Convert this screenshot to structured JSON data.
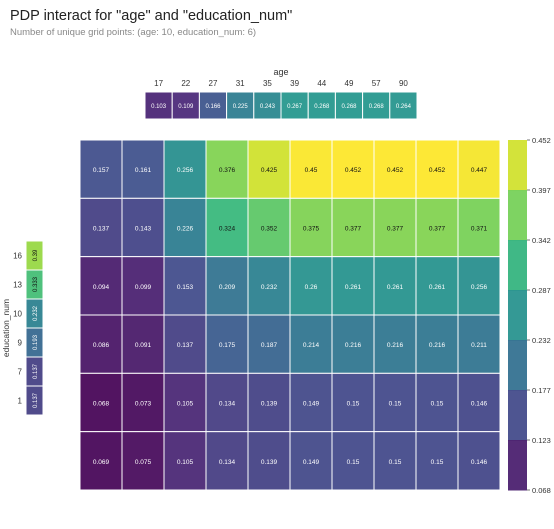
{
  "header": {
    "title": "PDP interact for \"age\" and \"education_num\"",
    "subtitle": "Number of unique grid points: (age: 10, education_num: 6)"
  },
  "colors": {
    "scale": [
      "#440154",
      "#482878",
      "#3e4989",
      "#31688e",
      "#26828e",
      "#1f9e89",
      "#35b779",
      "#6ece58",
      "#b5de2b",
      "#fde725"
    ],
    "cell_border": "#ffffff"
  },
  "chart_data": {
    "type": "heatmap",
    "colormap": "viridis",
    "x_feature": "age",
    "y_feature": "education_num",
    "x_ticks": [
      "17",
      "22",
      "27",
      "31",
      "35",
      "39",
      "44",
      "49",
      "57",
      "90"
    ],
    "y_ticks": [
      "16",
      "13",
      "10",
      "9",
      "7",
      "1"
    ],
    "x_marginal": [
      0.103,
      0.109,
      0.166,
      0.225,
      0.243,
      0.267,
      0.268,
      0.268,
      0.268,
      0.264
    ],
    "y_marginal": [
      0.39,
      0.333,
      0.232,
      0.193,
      0.137,
      0.137
    ],
    "matrix": [
      [
        0.157,
        0.161,
        0.256,
        0.376,
        0.425,
        0.45,
        0.452,
        0.452,
        0.452,
        0.447
      ],
      [
        0.137,
        0.143,
        0.226,
        0.324,
        0.352,
        0.375,
        0.377,
        0.377,
        0.377,
        0.371
      ],
      [
        0.094,
        0.099,
        0.153,
        0.209,
        0.232,
        0.26,
        0.261,
        0.261,
        0.261,
        0.256
      ],
      [
        0.086,
        0.091,
        0.137,
        0.175,
        0.187,
        0.214,
        0.216,
        0.216,
        0.216,
        0.211
      ],
      [
        0.068,
        0.073,
        0.105,
        0.134,
        0.139,
        0.149,
        0.15,
        0.15,
        0.15,
        0.146
      ],
      [
        0.069,
        0.075,
        0.105,
        0.134,
        0.139,
        0.149,
        0.15,
        0.15,
        0.15,
        0.146
      ]
    ],
    "colorbar_ticks": [
      "0.452",
      "0.397",
      "0.342",
      "0.287",
      "0.232",
      "0.177",
      "0.123",
      "0.068"
    ],
    "colorbar_range": [
      0.068,
      0.452
    ],
    "legend_position": "right"
  }
}
